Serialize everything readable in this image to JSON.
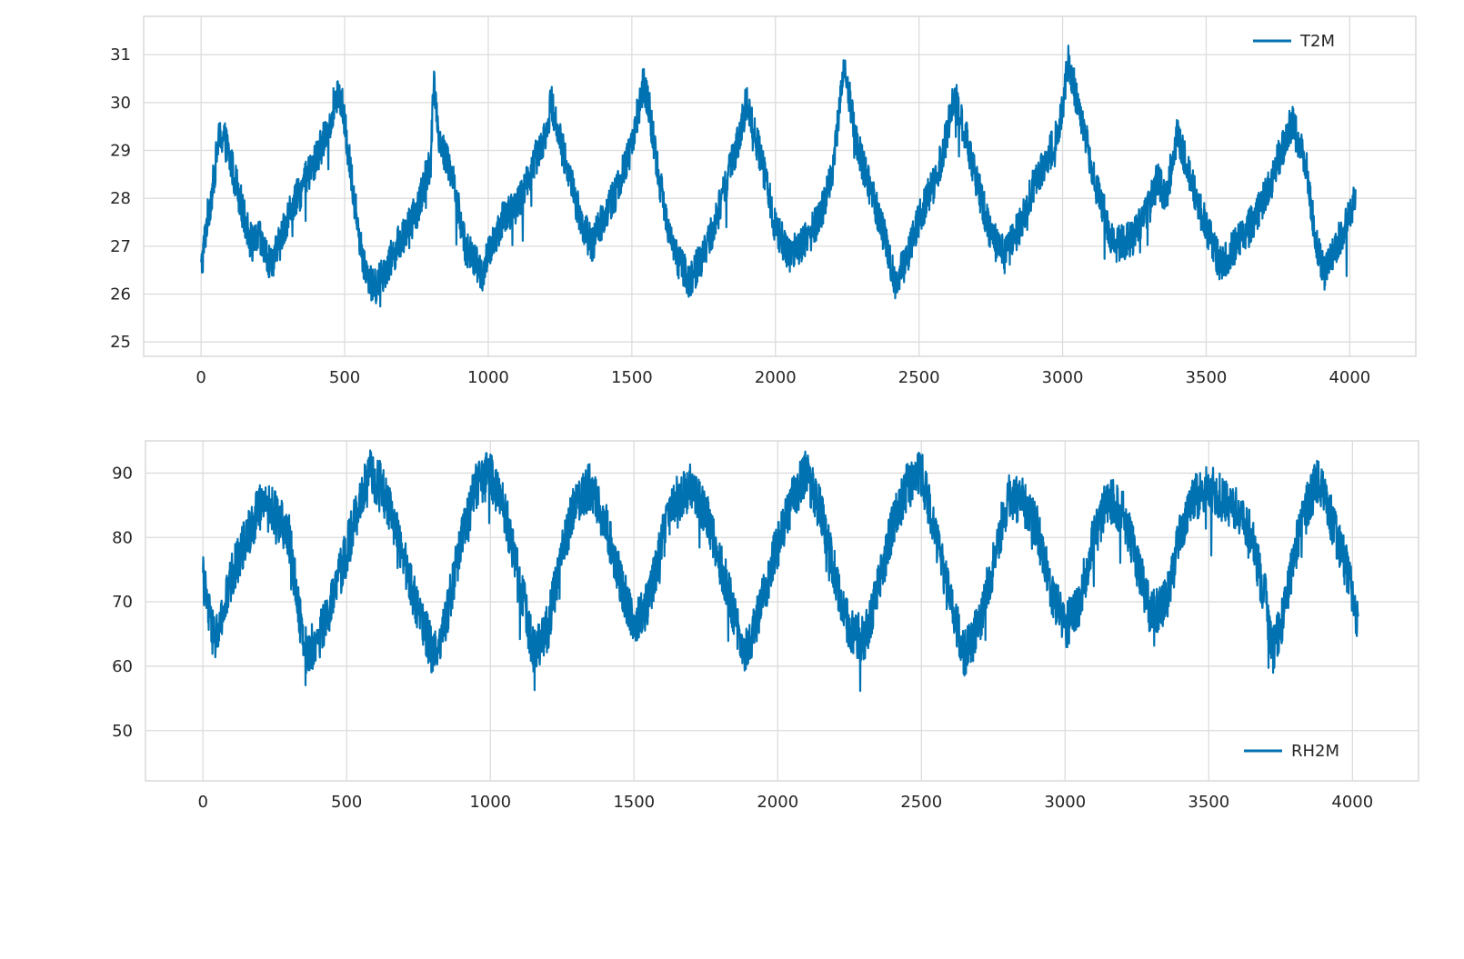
{
  "chart_data": [
    {
      "type": "line",
      "xlim": [
        -200,
        4230
      ],
      "ylim": [
        24.7,
        31.8
      ],
      "xticks": [
        0,
        500,
        1000,
        1500,
        2000,
        2500,
        3000,
        3500,
        4000
      ],
      "yticks": [
        25,
        26,
        27,
        28,
        29,
        30,
        31
      ],
      "grid": true,
      "legend": "top-right",
      "series": [
        {
          "name": "T2M",
          "color": "#0072b2",
          "x": [
            0,
            20,
            40,
            60,
            80,
            100,
            120,
            150,
            180,
            200,
            240,
            270,
            300,
            350,
            400,
            450,
            470,
            490,
            520,
            560,
            600,
            650,
            700,
            750,
            800,
            810,
            830,
            870,
            920,
            980,
            1000,
            1050,
            1100,
            1150,
            1200,
            1220,
            1260,
            1320,
            1360,
            1400,
            1450,
            1500,
            1540,
            1560,
            1600,
            1650,
            1700,
            1750,
            1800,
            1880,
            1900,
            1950,
            2000,
            2050,
            2100,
            2150,
            2200,
            2240,
            2280,
            2320,
            2380,
            2420,
            2460,
            2500,
            2560,
            2600,
            2620,
            2650,
            2700,
            2750,
            2800,
            2850,
            2900,
            2960,
            3000,
            3020,
            3060,
            3120,
            3180,
            3250,
            3300,
            3330,
            3360,
            3400,
            3450,
            3500,
            3550,
            3600,
            3650,
            3720,
            3750,
            3800,
            3850,
            3880,
            3910,
            3950,
            4000,
            4020
          ],
          "y": [
            26.5,
            27.5,
            28.2,
            29.2,
            29.3,
            28.8,
            28.4,
            27.6,
            27.0,
            27.2,
            26.6,
            27.0,
            27.6,
            28.2,
            28.8,
            29.6,
            30.2,
            30.0,
            28.6,
            26.8,
            26.1,
            26.6,
            27.2,
            27.7,
            28.8,
            30.5,
            29.2,
            28.6,
            27.0,
            26.4,
            26.8,
            27.6,
            27.8,
            28.6,
            29.4,
            30.0,
            29.0,
            27.6,
            27.0,
            27.6,
            28.2,
            29.1,
            30.4,
            29.9,
            28.2,
            26.8,
            26.3,
            26.8,
            27.7,
            29.4,
            30.1,
            28.8,
            27.4,
            26.8,
            27.1,
            27.5,
            28.6,
            30.8,
            29.2,
            28.4,
            27.2,
            26.2,
            26.8,
            27.6,
            28.4,
            29.4,
            30.2,
            29.6,
            28.4,
            27.2,
            26.8,
            27.4,
            28.3,
            29.0,
            29.8,
            30.9,
            29.8,
            28.2,
            27.0,
            27.2,
            27.8,
            28.4,
            28.0,
            29.4,
            28.3,
            27.4,
            26.6,
            27.0,
            27.4,
            28.2,
            28.8,
            29.6,
            28.6,
            27.2,
            26.4,
            27.0,
            27.6,
            28.2
          ]
        }
      ]
    },
    {
      "type": "line",
      "xlim": [
        -200,
        4230
      ],
      "ylim": [
        42.2,
        95.0
      ],
      "xticks": [
        0,
        500,
        1000,
        1500,
        2000,
        2500,
        3000,
        3500,
        4000
      ],
      "yticks": [
        50,
        60,
        70,
        80,
        90
      ],
      "grid": true,
      "legend": "bottom-right",
      "series": [
        {
          "name": "RH2M",
          "color": "#0072b2",
          "x": [
            0,
            20,
            40,
            60,
            100,
            150,
            200,
            250,
            300,
            330,
            360,
            400,
            450,
            500,
            550,
            580,
            620,
            680,
            740,
            800,
            840,
            900,
            950,
            1000,
            1050,
            1100,
            1150,
            1200,
            1250,
            1300,
            1350,
            1400,
            1450,
            1500,
            1550,
            1600,
            1650,
            1700,
            1750,
            1800,
            1850,
            1880,
            1920,
            1980,
            2050,
            2100,
            2150,
            2200,
            2250,
            2300,
            2350,
            2400,
            2450,
            2500,
            2550,
            2600,
            2650,
            2700,
            2750,
            2800,
            2850,
            2900,
            2950,
            3000,
            3050,
            3100,
            3150,
            3200,
            3250,
            3300,
            3350,
            3400,
            3450,
            3500,
            3550,
            3600,
            3650,
            3700,
            3720,
            3760,
            3800,
            3850,
            3880,
            3920,
            3960,
            4000,
            4020
          ],
          "y": [
            74,
            68,
            64,
            66,
            74,
            80,
            85,
            84,
            80,
            70,
            62,
            64,
            70,
            78,
            86,
            90,
            88,
            80,
            70,
            62,
            66,
            80,
            88,
            90,
            84,
            74,
            62,
            66,
            78,
            86,
            88,
            82,
            74,
            66,
            70,
            80,
            86,
            88,
            84,
            76,
            68,
            62,
            66,
            76,
            86,
            90,
            84,
            74,
            66,
            64,
            72,
            82,
            88,
            90,
            80,
            70,
            62,
            66,
            76,
            86,
            86,
            82,
            72,
            66,
            70,
            80,
            86,
            84,
            76,
            68,
            70,
            80,
            86,
            88,
            86,
            84,
            80,
            70,
            62,
            68,
            78,
            86,
            89,
            84,
            78,
            72,
            66
          ]
        }
      ]
    }
  ]
}
